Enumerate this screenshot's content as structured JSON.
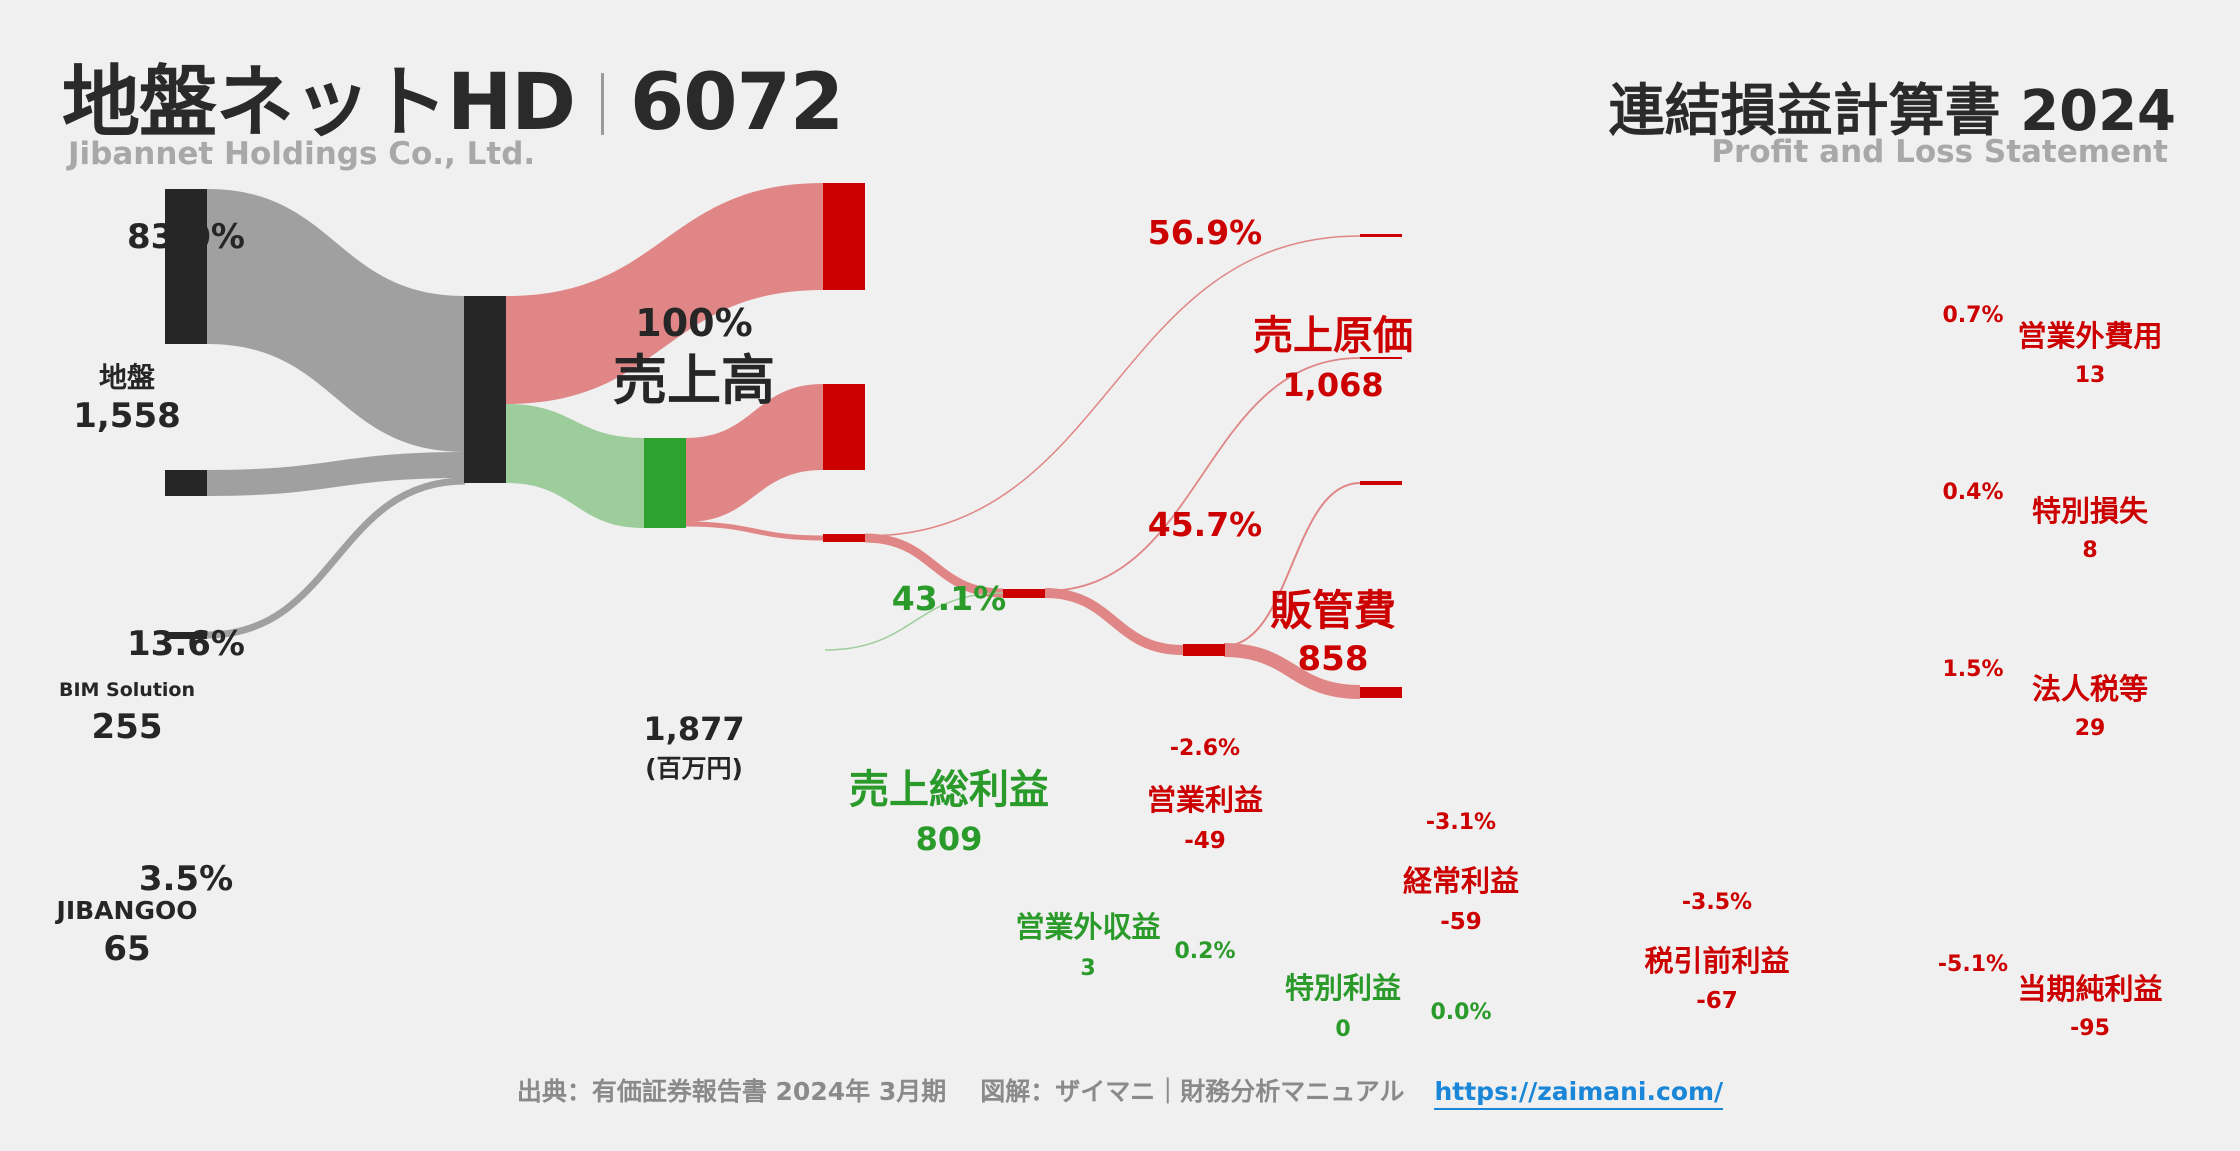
{
  "header": {
    "company": "地盤ネットHD",
    "code": "6072",
    "company_en": "Jibannet Holdings Co., Ltd.",
    "statement": "連結損益計算書 2024",
    "statement_en": "Profit and Loss Statement"
  },
  "colors": {
    "dark": "#262626",
    "grey_flow": "#a0a0a0",
    "red": "#cc0000",
    "red_flow": "#e08686",
    "green": "#2ea12e",
    "green_flow": "#9dcd9a",
    "text_green": "#2a9a2a"
  },
  "chart_data": {
    "type": "sankey",
    "unit": "(百万円)",
    "revenue": {
      "label": "売上高",
      "value": "1,877",
      "pct": "100%"
    },
    "segments": [
      {
        "label": "地盤",
        "value": "1,558",
        "pct": "83.0%"
      },
      {
        "label": "BIM Solution",
        "value": "255",
        "pct": "13.6%"
      },
      {
        "label": "JIBANGOO",
        "value": "65",
        "pct": "3.5%"
      }
    ],
    "cost_of_sales": {
      "label": "売上原価",
      "value": "1,068",
      "pct": "56.9%"
    },
    "gross_profit": {
      "label": "売上総利益",
      "value": "809",
      "pct": "43.1%"
    },
    "sga": {
      "label": "販管費",
      "value": "858",
      "pct": "45.7%"
    },
    "operating_income": {
      "label": "営業利益",
      "value": "-49",
      "pct": "-2.6%"
    },
    "non_operating_income": {
      "label": "営業外収益",
      "value": "3",
      "pct": "0.2%"
    },
    "non_operating_expense": {
      "label": "営業外費用",
      "value": "13",
      "pct": "0.7%"
    },
    "ordinary_income": {
      "label": "経常利益",
      "value": "-59",
      "pct": "-3.1%"
    },
    "extraordinary_income": {
      "label": "特別利益",
      "value": "0",
      "pct": "0.0%"
    },
    "extraordinary_loss": {
      "label": "特別損失",
      "value": "8",
      "pct": "0.4%"
    },
    "pretax_income": {
      "label": "税引前利益",
      "value": "-67",
      "pct": "-3.5%"
    },
    "income_tax": {
      "label": "法人税等",
      "value": "29",
      "pct": "1.5%"
    },
    "net_income": {
      "label": "当期純利益",
      "value": "-95",
      "pct": "-5.1%"
    }
  },
  "footer": {
    "source": "出典：有価証券報告書 2024年 3月期",
    "credit": "図解：ザイマニ｜財務分析マニュアル",
    "url": "https://zaimani.com/"
  }
}
